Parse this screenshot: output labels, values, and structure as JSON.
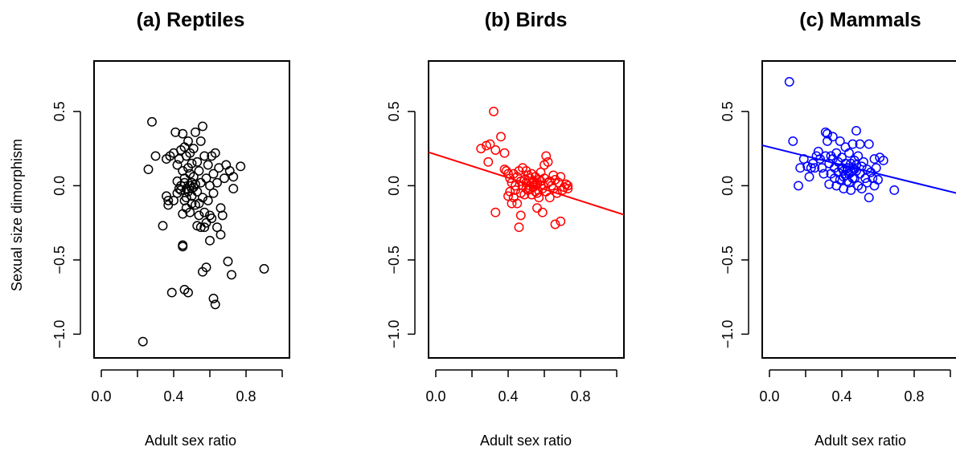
{
  "figure": {
    "ylabel": "Sexual size dimorphism"
  },
  "chart_data": [
    {
      "type": "scatter",
      "title": "(a) Reptiles",
      "xlabel": "Adult sex ratio",
      "ylabel": "Sexual size dimorphism",
      "xlim": [
        -0.04,
        1.04
      ],
      "ylim": [
        -1.16,
        0.84
      ],
      "xticks": [
        "0.0",
        "0.4",
        "0.8"
      ],
      "yticks": [
        "-1.0",
        "-0.5",
        "0.0",
        "0.5"
      ],
      "color": "#000000",
      "grid": false,
      "fit_line": null,
      "points": [
        [
          0.28,
          0.43
        ],
        [
          0.3,
          0.2
        ],
        [
          0.26,
          0.11
        ],
        [
          0.23,
          -1.05
        ],
        [
          0.34,
          -0.27
        ],
        [
          0.37,
          -0.13
        ],
        [
          0.39,
          -0.72
        ],
        [
          0.36,
          -0.07
        ],
        [
          0.38,
          0.2
        ],
        [
          0.4,
          0.22
        ],
        [
          0.4,
          -0.1
        ],
        [
          0.41,
          0.36
        ],
        [
          0.42,
          0.14
        ],
        [
          0.42,
          0.03
        ],
        [
          0.42,
          -0.05
        ],
        [
          0.43,
          0.18
        ],
        [
          0.44,
          0.24
        ],
        [
          0.44,
          0.0
        ],
        [
          0.44,
          -0.03
        ],
        [
          0.45,
          0.35
        ],
        [
          0.45,
          0.1
        ],
        [
          0.45,
          -0.19
        ],
        [
          0.45,
          -0.4
        ],
        [
          0.46,
          0.26
        ],
        [
          0.46,
          0.05
        ],
        [
          0.46,
          -0.1
        ],
        [
          0.46,
          -0.7
        ],
        [
          0.47,
          0.2
        ],
        [
          0.47,
          -0.02
        ],
        [
          0.47,
          -0.15
        ],
        [
          0.48,
          0.3
        ],
        [
          0.48,
          0.12
        ],
        [
          0.48,
          -0.04
        ],
        [
          0.48,
          -0.72
        ],
        [
          0.49,
          0.22
        ],
        [
          0.49,
          0.0
        ],
        [
          0.49,
          -0.18
        ],
        [
          0.5,
          0.15
        ],
        [
          0.5,
          0.02
        ],
        [
          0.5,
          -0.07
        ],
        [
          0.5,
          -0.12
        ],
        [
          0.51,
          0.25
        ],
        [
          0.51,
          0.06
        ],
        [
          0.51,
          -0.01
        ],
        [
          0.52,
          0.36
        ],
        [
          0.52,
          -0.13
        ],
        [
          0.53,
          0.16
        ],
        [
          0.53,
          -0.04
        ],
        [
          0.53,
          -0.27
        ],
        [
          0.54,
          0.1
        ],
        [
          0.54,
          -0.2
        ],
        [
          0.55,
          0.3
        ],
        [
          0.55,
          0.02
        ],
        [
          0.55,
          -0.28
        ],
        [
          0.56,
          0.4
        ],
        [
          0.56,
          -0.08
        ],
        [
          0.56,
          -0.58
        ],
        [
          0.57,
          0.2
        ],
        [
          0.57,
          -0.18
        ],
        [
          0.58,
          0.05
        ],
        [
          0.58,
          -0.25
        ],
        [
          0.58,
          -0.55
        ],
        [
          0.59,
          0.14
        ],
        [
          0.59,
          -0.1
        ],
        [
          0.6,
          -0.37
        ],
        [
          0.6,
          0.0
        ],
        [
          0.61,
          0.2
        ],
        [
          0.61,
          -0.22
        ],
        [
          0.62,
          0.08
        ],
        [
          0.62,
          -0.05
        ],
        [
          0.62,
          -0.76
        ],
        [
          0.63,
          0.22
        ],
        [
          0.63,
          -0.8
        ],
        [
          0.64,
          -0.28
        ],
        [
          0.64,
          0.02
        ],
        [
          0.65,
          0.12
        ],
        [
          0.66,
          -0.15
        ],
        [
          0.66,
          -0.33
        ],
        [
          0.67,
          -0.2
        ],
        [
          0.68,
          0.05
        ],
        [
          0.69,
          0.14
        ],
        [
          0.7,
          -0.51
        ],
        [
          0.71,
          0.1
        ],
        [
          0.72,
          -0.6
        ],
        [
          0.73,
          0.06
        ],
        [
          0.73,
          -0.02
        ],
        [
          0.77,
          0.13
        ],
        [
          0.9,
          -0.56
        ],
        [
          0.36,
          0.18
        ],
        [
          0.37,
          -0.1
        ],
        [
          0.43,
          -0.02
        ],
        [
          0.45,
          -0.41
        ],
        [
          0.46,
          0.02
        ],
        [
          0.47,
          -0.08
        ],
        [
          0.49,
          0.08
        ],
        [
          0.5,
          -0.02
        ],
        [
          0.52,
          0.01
        ],
        [
          0.54,
          -0.12
        ],
        [
          0.57,
          -0.28
        ],
        [
          0.6,
          -0.2
        ]
      ]
    },
    {
      "type": "scatter",
      "title": "(b) Birds",
      "xlabel": "Adult sex ratio",
      "ylabel": "",
      "xlim": [
        -0.04,
        1.04
      ],
      "ylim": [
        -1.16,
        0.84
      ],
      "xticks": [
        "0.0",
        "0.4",
        "0.8"
      ],
      "yticks": [
        "-1.0",
        "-0.5",
        "0.0",
        "0.5"
      ],
      "color": "#ff0000",
      "grid": false,
      "fit_line": {
        "intercept": 0.21,
        "slope": -0.39,
        "x_range": [
          -0.04,
          1.04
        ]
      },
      "points": [
        [
          0.32,
          0.5
        ],
        [
          0.36,
          0.33
        ],
        [
          0.25,
          0.25
        ],
        [
          0.28,
          0.27
        ],
        [
          0.3,
          0.28
        ],
        [
          0.33,
          0.24
        ],
        [
          0.29,
          0.16
        ],
        [
          0.33,
          -0.18
        ],
        [
          0.38,
          0.22
        ],
        [
          0.38,
          0.11
        ],
        [
          0.39,
          0.1
        ],
        [
          0.4,
          0.08
        ],
        [
          0.4,
          -0.07
        ],
        [
          0.41,
          0.05
        ],
        [
          0.41,
          -0.04
        ],
        [
          0.42,
          -0.12
        ],
        [
          0.42,
          0.02
        ],
        [
          0.43,
          0.08
        ],
        [
          0.43,
          -0.08
        ],
        [
          0.44,
          0.0
        ],
        [
          0.44,
          -0.03
        ],
        [
          0.45,
          0.06
        ],
        [
          0.45,
          -0.12
        ],
        [
          0.46,
          0.1
        ],
        [
          0.46,
          -0.28
        ],
        [
          0.47,
          0.03
        ],
        [
          0.47,
          -0.05
        ],
        [
          0.47,
          -0.2
        ],
        [
          0.48,
          0.12
        ],
        [
          0.48,
          0.0
        ],
        [
          0.49,
          0.04
        ],
        [
          0.49,
          -0.06
        ],
        [
          0.5,
          0.1
        ],
        [
          0.5,
          0.02
        ],
        [
          0.5,
          -0.02
        ],
        [
          0.51,
          0.07
        ],
        [
          0.51,
          -0.03
        ],
        [
          0.52,
          0.0
        ],
        [
          0.52,
          0.05
        ],
        [
          0.53,
          -0.06
        ],
        [
          0.53,
          0.08
        ],
        [
          0.54,
          0.02
        ],
        [
          0.54,
          -0.01
        ],
        [
          0.55,
          0.06
        ],
        [
          0.55,
          -0.04
        ],
        [
          0.56,
          0.01
        ],
        [
          0.56,
          -0.15
        ],
        [
          0.57,
          0.04
        ],
        [
          0.57,
          -0.08
        ],
        [
          0.58,
          0.0
        ],
        [
          0.58,
          0.09
        ],
        [
          0.59,
          -0.02
        ],
        [
          0.59,
          -0.18
        ],
        [
          0.6,
          0.05
        ],
        [
          0.6,
          0.14
        ],
        [
          0.61,
          0.2
        ],
        [
          0.61,
          -0.04
        ],
        [
          0.62,
          0.02
        ],
        [
          0.62,
          0.16
        ],
        [
          0.63,
          -0.08
        ],
        [
          0.63,
          0.03
        ],
        [
          0.64,
          0.0
        ],
        [
          0.65,
          -0.02
        ],
        [
          0.65,
          0.07
        ],
        [
          0.66,
          -0.26
        ],
        [
          0.66,
          0.04
        ],
        [
          0.67,
          -0.05
        ],
        [
          0.68,
          0.02
        ],
        [
          0.69,
          -0.24
        ],
        [
          0.69,
          0.06
        ],
        [
          0.7,
          -0.03
        ],
        [
          0.71,
          -0.01
        ],
        [
          0.72,
          0.01
        ],
        [
          0.73,
          -0.02
        ],
        [
          0.73,
          0.0
        ],
        [
          0.52,
          -0.02
        ],
        [
          0.54,
          0.03
        ],
        [
          0.56,
          -0.05
        ],
        [
          0.58,
          0.03
        ],
        [
          0.55,
          0.01
        ]
      ]
    },
    {
      "type": "scatter",
      "title": "(c) Mammals",
      "xlabel": "Adult sex ratio",
      "ylabel": "",
      "xlim": [
        -0.04,
        1.04
      ],
      "ylim": [
        -1.16,
        0.84
      ],
      "xticks": [
        "0.0",
        "0.4",
        "0.8"
      ],
      "yticks": [
        "-1.0",
        "-0.5",
        "0.0",
        "0.5"
      ],
      "color": "#0000ff",
      "grid": false,
      "fit_line": {
        "intercept": 0.26,
        "slope": -0.3,
        "x_range": [
          -0.04,
          1.04
        ]
      },
      "points": [
        [
          0.11,
          0.7
        ],
        [
          0.13,
          0.3
        ],
        [
          0.16,
          0.0
        ],
        [
          0.17,
          0.12
        ],
        [
          0.19,
          0.18
        ],
        [
          0.21,
          0.13
        ],
        [
          0.22,
          0.06
        ],
        [
          0.23,
          0.12
        ],
        [
          0.24,
          0.15
        ],
        [
          0.25,
          0.12
        ],
        [
          0.26,
          0.2
        ],
        [
          0.27,
          0.23
        ],
        [
          0.28,
          0.18
        ],
        [
          0.29,
          0.12
        ],
        [
          0.3,
          0.08
        ],
        [
          0.31,
          0.2
        ],
        [
          0.31,
          0.36
        ],
        [
          0.32,
          0.35
        ],
        [
          0.32,
          0.3
        ],
        [
          0.33,
          0.15
        ],
        [
          0.33,
          0.01
        ],
        [
          0.34,
          0.2
        ],
        [
          0.34,
          0.08
        ],
        [
          0.35,
          0.33
        ],
        [
          0.35,
          0.18
        ],
        [
          0.36,
          0.05
        ],
        [
          0.36,
          0.12
        ],
        [
          0.37,
          0.22
        ],
        [
          0.37,
          0.0
        ],
        [
          0.38,
          0.16
        ],
        [
          0.38,
          0.09
        ],
        [
          0.39,
          0.3
        ],
        [
          0.39,
          0.04
        ],
        [
          0.4,
          0.19
        ],
        [
          0.4,
          0.12
        ],
        [
          0.41,
          0.06
        ],
        [
          0.41,
          -0.02
        ],
        [
          0.42,
          0.15
        ],
        [
          0.42,
          0.26
        ],
        [
          0.43,
          0.1
        ],
        [
          0.43,
          0.03
        ],
        [
          0.44,
          0.22
        ],
        [
          0.44,
          0.08
        ],
        [
          0.45,
          0.15
        ],
        [
          0.45,
          -0.03
        ],
        [
          0.46,
          0.12
        ],
        [
          0.46,
          0.28
        ],
        [
          0.47,
          0.05
        ],
        [
          0.47,
          0.17
        ],
        [
          0.48,
          0.37
        ],
        [
          0.48,
          0.1
        ],
        [
          0.49,
          0.0
        ],
        [
          0.49,
          0.2
        ],
        [
          0.5,
          0.08
        ],
        [
          0.5,
          0.28
        ],
        [
          0.51,
          0.13
        ],
        [
          0.51,
          -0.02
        ],
        [
          0.52,
          0.16
        ],
        [
          0.53,
          0.05
        ],
        [
          0.54,
          0.11
        ],
        [
          0.54,
          0.02
        ],
        [
          0.55,
          0.28
        ],
        [
          0.55,
          -0.08
        ],
        [
          0.56,
          0.09
        ],
        [
          0.57,
          0.05
        ],
        [
          0.58,
          0.0
        ],
        [
          0.58,
          0.18
        ],
        [
          0.59,
          0.12
        ],
        [
          0.6,
          0.04
        ],
        [
          0.61,
          0.19
        ],
        [
          0.63,
          0.17
        ],
        [
          0.69,
          -0.03
        ],
        [
          0.43,
          0.12
        ],
        [
          0.44,
          0.02
        ],
        [
          0.46,
          0.05
        ],
        [
          0.48,
          0.14
        ],
        [
          0.41,
          0.1
        ],
        [
          0.45,
          0.09
        ],
        [
          0.47,
          0.11
        ],
        [
          0.42,
          0.07
        ]
      ]
    }
  ]
}
